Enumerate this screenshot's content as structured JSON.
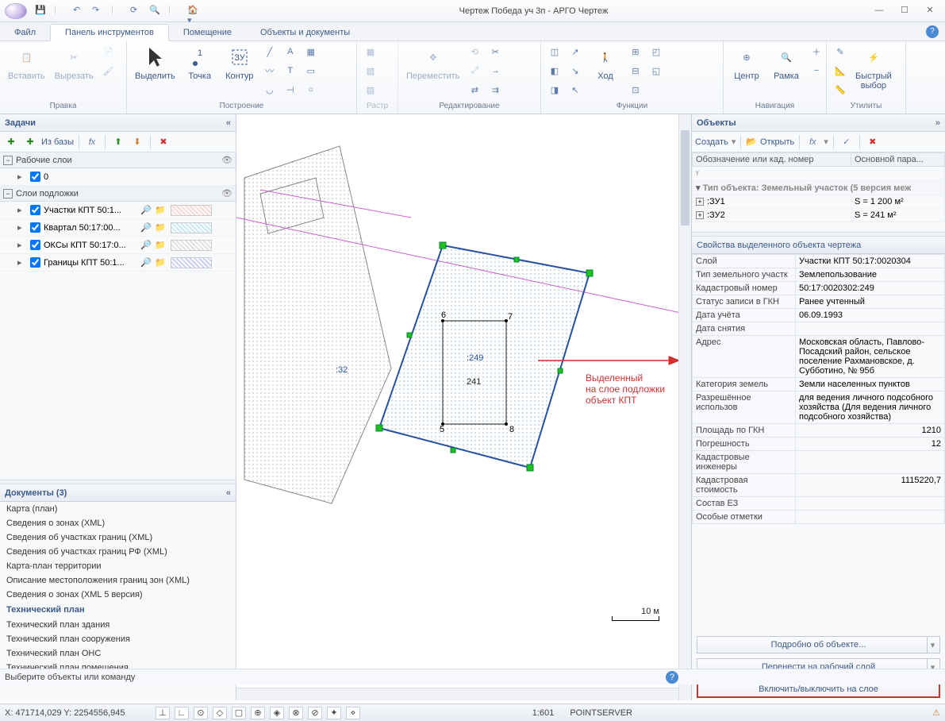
{
  "title": "Чертеж Победа уч 3п - АРГО Чертеж",
  "menu": {
    "file": "Файл",
    "toolpanel": "Панель инструментов",
    "room": "Помещение",
    "objects": "Объекты и документы"
  },
  "ribbon": {
    "edit": {
      "paste": "Вставить",
      "cut": "Вырезать",
      "title": "Правка"
    },
    "build": {
      "select": "Выделить",
      "point": "Точка",
      "contour": "Контур",
      "title": "Построение"
    },
    "raster": {
      "title": "Растр"
    },
    "transform": {
      "move": "Переместить",
      "title": "Редактирование"
    },
    "funcs": {
      "go": "Ход",
      "title": "Функции"
    },
    "nav": {
      "center": "Центр",
      "frame": "Рамка",
      "title": "Навигация"
    },
    "util": {
      "quick": "Быстрый\nвыбор",
      "title": "Утилиты"
    }
  },
  "left": {
    "tasks_title": "Задачи",
    "fromdb": "Из базы",
    "sec1": "Рабочие слои",
    "layer0": "0",
    "sec2": "Слои подложки",
    "l1": "Участки КПТ 50:1...",
    "l2": "Квартал 50:17:00...",
    "l3": "ОКСы КПТ 50:17:0...",
    "l4": "Границы КПТ 50:1...",
    "docs_title": "Документы (3)",
    "docs": [
      "Карта (план)",
      "Сведения о зонах (XML)",
      "Сведения об участках границ (XML)",
      "Сведения об участках границ РФ (XML)",
      "Карта-план территории",
      "Описание местоположения границ зон (XML)",
      "Сведения о зонах (XML 5 версия)"
    ],
    "techplan_hdr": "Технический план",
    "tech": [
      "Технический план здания",
      "Технический план сооружения",
      "Технический план ОНС",
      "Технический план помещения"
    ]
  },
  "right": {
    "objs_title": "Объекты",
    "create": "Создать",
    "open": "Открыть",
    "col1": "Обозначение или кад. номер",
    "col2": "Основной пара...",
    "group": "Тип объекта: Земельный участок (5 версия меж",
    "r1a": ":ЗУ1",
    "r1b": "S = 1 200 м²",
    "r2a": ":ЗУ2",
    "r2b": "S = 241 м²",
    "props_title": "Свойства выделенного объекта чертежа",
    "props": [
      [
        "Слой",
        "Участки КПТ 50:17:0020304"
      ],
      [
        "Тип земельного участк",
        "Землепользование"
      ],
      [
        "Кадастровый номер",
        "50:17:0020302:249"
      ],
      [
        "Статус записи в ГКН",
        "Ранее учтенный"
      ],
      [
        "Дата учёта",
        "06.09.1993"
      ],
      [
        "Дата снятия",
        ""
      ],
      [
        "Адрес",
        "Московская область, Павлово-Посадский район, сельское поселение Рахмановское, д. Субботино, № 95б"
      ],
      [
        "Категория земель",
        "Земли населенных пунктов"
      ],
      [
        "Разрешённое использов",
        "для ведения личного подсобного хозяйства (Для ведения личного подсобного хозяйства)"
      ],
      [
        "Площадь по ГКН",
        "1210"
      ],
      [
        "Погрешность",
        "12"
      ],
      [
        "Кадастровые инженеры",
        ""
      ],
      [
        "Кадастровая стоимость",
        "1115220,7"
      ],
      [
        "Состав ЕЗ",
        ""
      ],
      [
        "Особые отметки",
        ""
      ]
    ],
    "btn1": "Подробно об объекте...",
    "btn2": "Перенести на рабочий слой",
    "btn3": "Включить/выключить на слое"
  },
  "canvas": {
    "label32": ":32",
    "label249": ":249",
    "label241": "241",
    "pt5": "5",
    "pt6": "6",
    "pt7": "7",
    "pt8": "8",
    "anno": "Выделенный\nна слое подложки\nобъект КПТ",
    "scaletxt": "10 м"
  },
  "status": {
    "prompt": "Выберите объекты или команду",
    "coords": "X: 471714,029 Y: 2254556,945",
    "scale": "1:601",
    "server": "POINTSERVER"
  }
}
